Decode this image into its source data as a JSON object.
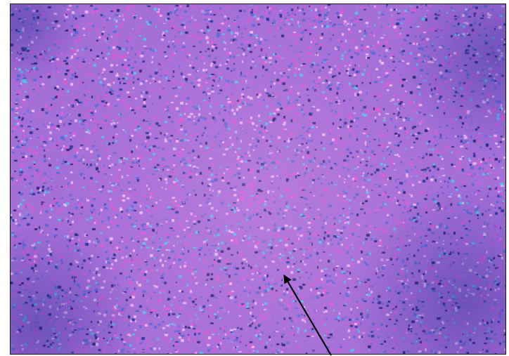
{
  "image": {
    "palette": {
      "base": "#a56fd8",
      "pink": "#e25ad6",
      "light": "#f0b8f2",
      "blue": "#5a6cd8",
      "cyan": "#56c4ec",
      "dark": "#2c2a78",
      "navy": "#2f3aa0"
    }
  },
  "annotation": {
    "arrow_color": "#000000"
  }
}
